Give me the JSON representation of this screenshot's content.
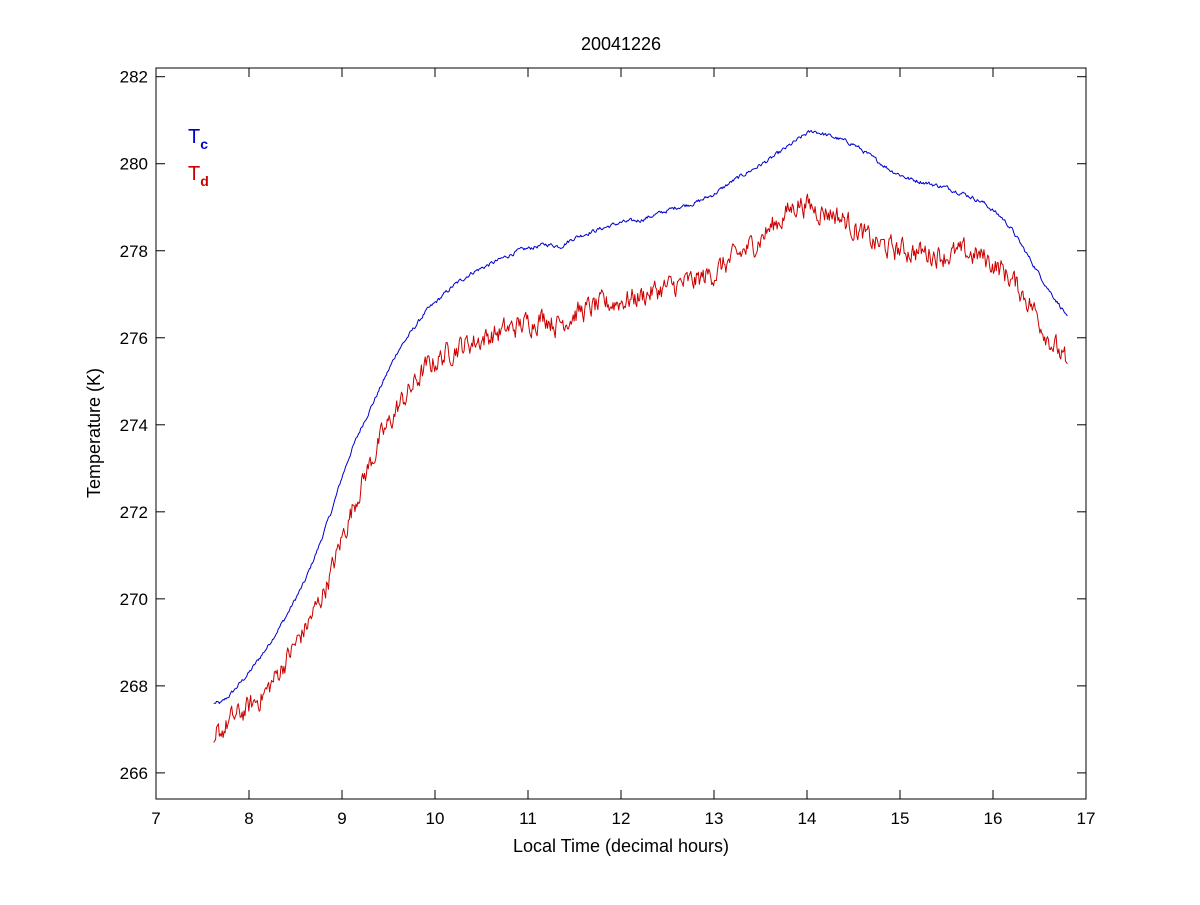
{
  "chart_data": {
    "type": "line",
    "title": "20041226",
    "xlabel": "Local Time (decimal hours)",
    "ylabel": "Temperature (K)",
    "xlim": [
      7,
      17
    ],
    "ylim": [
      265.4,
      282.2
    ],
    "xticks": [
      7,
      8,
      9,
      10,
      11,
      12,
      13,
      14,
      15,
      16,
      17
    ],
    "yticks": [
      266,
      268,
      270,
      272,
      274,
      276,
      278,
      280,
      282
    ],
    "grid": false,
    "legend_placement": "top-left",
    "series": [
      {
        "name": "Tc",
        "legend_main": "T",
        "legend_sub": "c",
        "color": "#0000cc",
        "noise": 0.04,
        "x": [
          7.62,
          7.7,
          7.8,
          8.0,
          8.2,
          8.4,
          8.6,
          8.75,
          8.9,
          9.0,
          9.1,
          9.2,
          9.4,
          9.6,
          9.8,
          9.9,
          10.0,
          10.1,
          10.2,
          10.3,
          10.4,
          10.6,
          10.8,
          10.9,
          11.0,
          11.2,
          11.35,
          11.5,
          11.7,
          12.0,
          12.2,
          12.4,
          12.6,
          12.8,
          13.0,
          13.2,
          13.4,
          13.6,
          13.8,
          13.9,
          14.0,
          14.08,
          14.15,
          14.3,
          14.5,
          14.7,
          14.9,
          15.1,
          15.3,
          15.5,
          15.7,
          15.9,
          16.1,
          16.2,
          16.4,
          16.6,
          16.8
        ],
        "y": [
          267.6,
          267.6,
          267.8,
          268.3,
          268.9,
          269.6,
          270.4,
          271.2,
          272.1,
          272.8,
          273.4,
          273.9,
          274.8,
          275.7,
          276.3,
          276.6,
          276.8,
          277.0,
          277.2,
          277.35,
          277.5,
          277.7,
          277.9,
          278.0,
          278.05,
          278.15,
          278.1,
          278.3,
          278.45,
          278.65,
          278.7,
          278.85,
          279.0,
          279.1,
          279.3,
          279.6,
          279.85,
          280.1,
          280.4,
          280.55,
          280.7,
          280.75,
          280.7,
          280.6,
          280.45,
          280.15,
          279.85,
          279.65,
          279.55,
          279.45,
          279.3,
          279.1,
          278.75,
          278.5,
          277.8,
          277.1,
          276.5
        ]
      },
      {
        "name": "Td",
        "legend_main": "T",
        "legend_sub": "d",
        "color": "#cc0000",
        "noise": 0.22,
        "x": [
          7.62,
          7.7,
          7.8,
          8.0,
          8.2,
          8.4,
          8.6,
          8.75,
          8.9,
          9.0,
          9.1,
          9.2,
          9.4,
          9.6,
          9.8,
          9.9,
          10.0,
          10.1,
          10.2,
          10.4,
          10.6,
          10.8,
          11.0,
          11.2,
          11.3,
          11.5,
          11.7,
          12.0,
          12.2,
          12.4,
          12.6,
          12.8,
          13.0,
          13.2,
          13.4,
          13.6,
          13.8,
          13.9,
          14.0,
          14.1,
          14.3,
          14.5,
          14.7,
          14.9,
          15.1,
          15.3,
          15.5,
          15.7,
          15.9,
          16.1,
          16.2,
          16.4,
          16.6,
          16.8
        ],
        "y": [
          266.7,
          266.95,
          267.2,
          267.5,
          267.9,
          268.6,
          269.3,
          269.9,
          270.7,
          271.4,
          272.0,
          272.6,
          273.6,
          274.4,
          275.0,
          275.3,
          275.45,
          275.6,
          275.75,
          275.9,
          276.05,
          276.2,
          276.35,
          276.5,
          276.3,
          276.55,
          276.7,
          276.85,
          276.95,
          277.1,
          277.2,
          277.3,
          277.5,
          277.8,
          278.1,
          278.5,
          278.9,
          279.1,
          279.05,
          278.95,
          278.85,
          278.55,
          278.2,
          278.05,
          278.0,
          277.95,
          277.9,
          277.95,
          277.85,
          277.55,
          277.35,
          276.8,
          276.0,
          275.4
        ]
      }
    ]
  }
}
